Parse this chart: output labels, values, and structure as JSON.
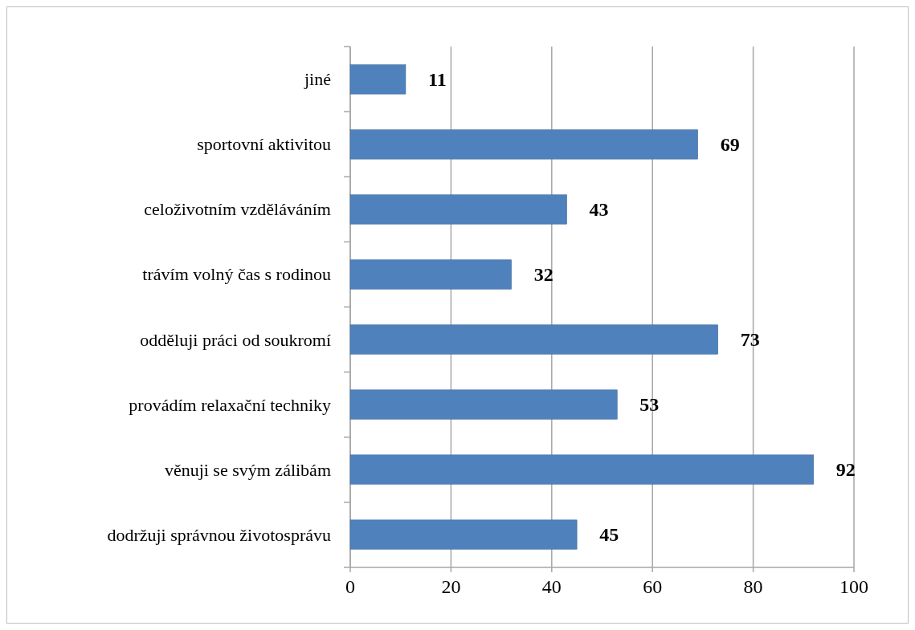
{
  "chart_data": {
    "type": "bar",
    "orientation": "horizontal",
    "categories": [
      "jiné",
      "sportovní aktivitou",
      "celoživotním vzděláváním",
      "trávím volný čas s rodinou",
      "odděluji práci od soukromí",
      "provádím relaxační techniky",
      "věnuji se svým zálibám",
      "dodržuji správnou životosprávu"
    ],
    "values": [
      11,
      69,
      43,
      32,
      73,
      53,
      92,
      45
    ],
    "color": "#4f81bd",
    "xlim": [
      0,
      100
    ],
    "xticks": [
      0,
      20,
      40,
      60,
      80,
      100
    ],
    "grid": "x",
    "data_labels": true
  }
}
